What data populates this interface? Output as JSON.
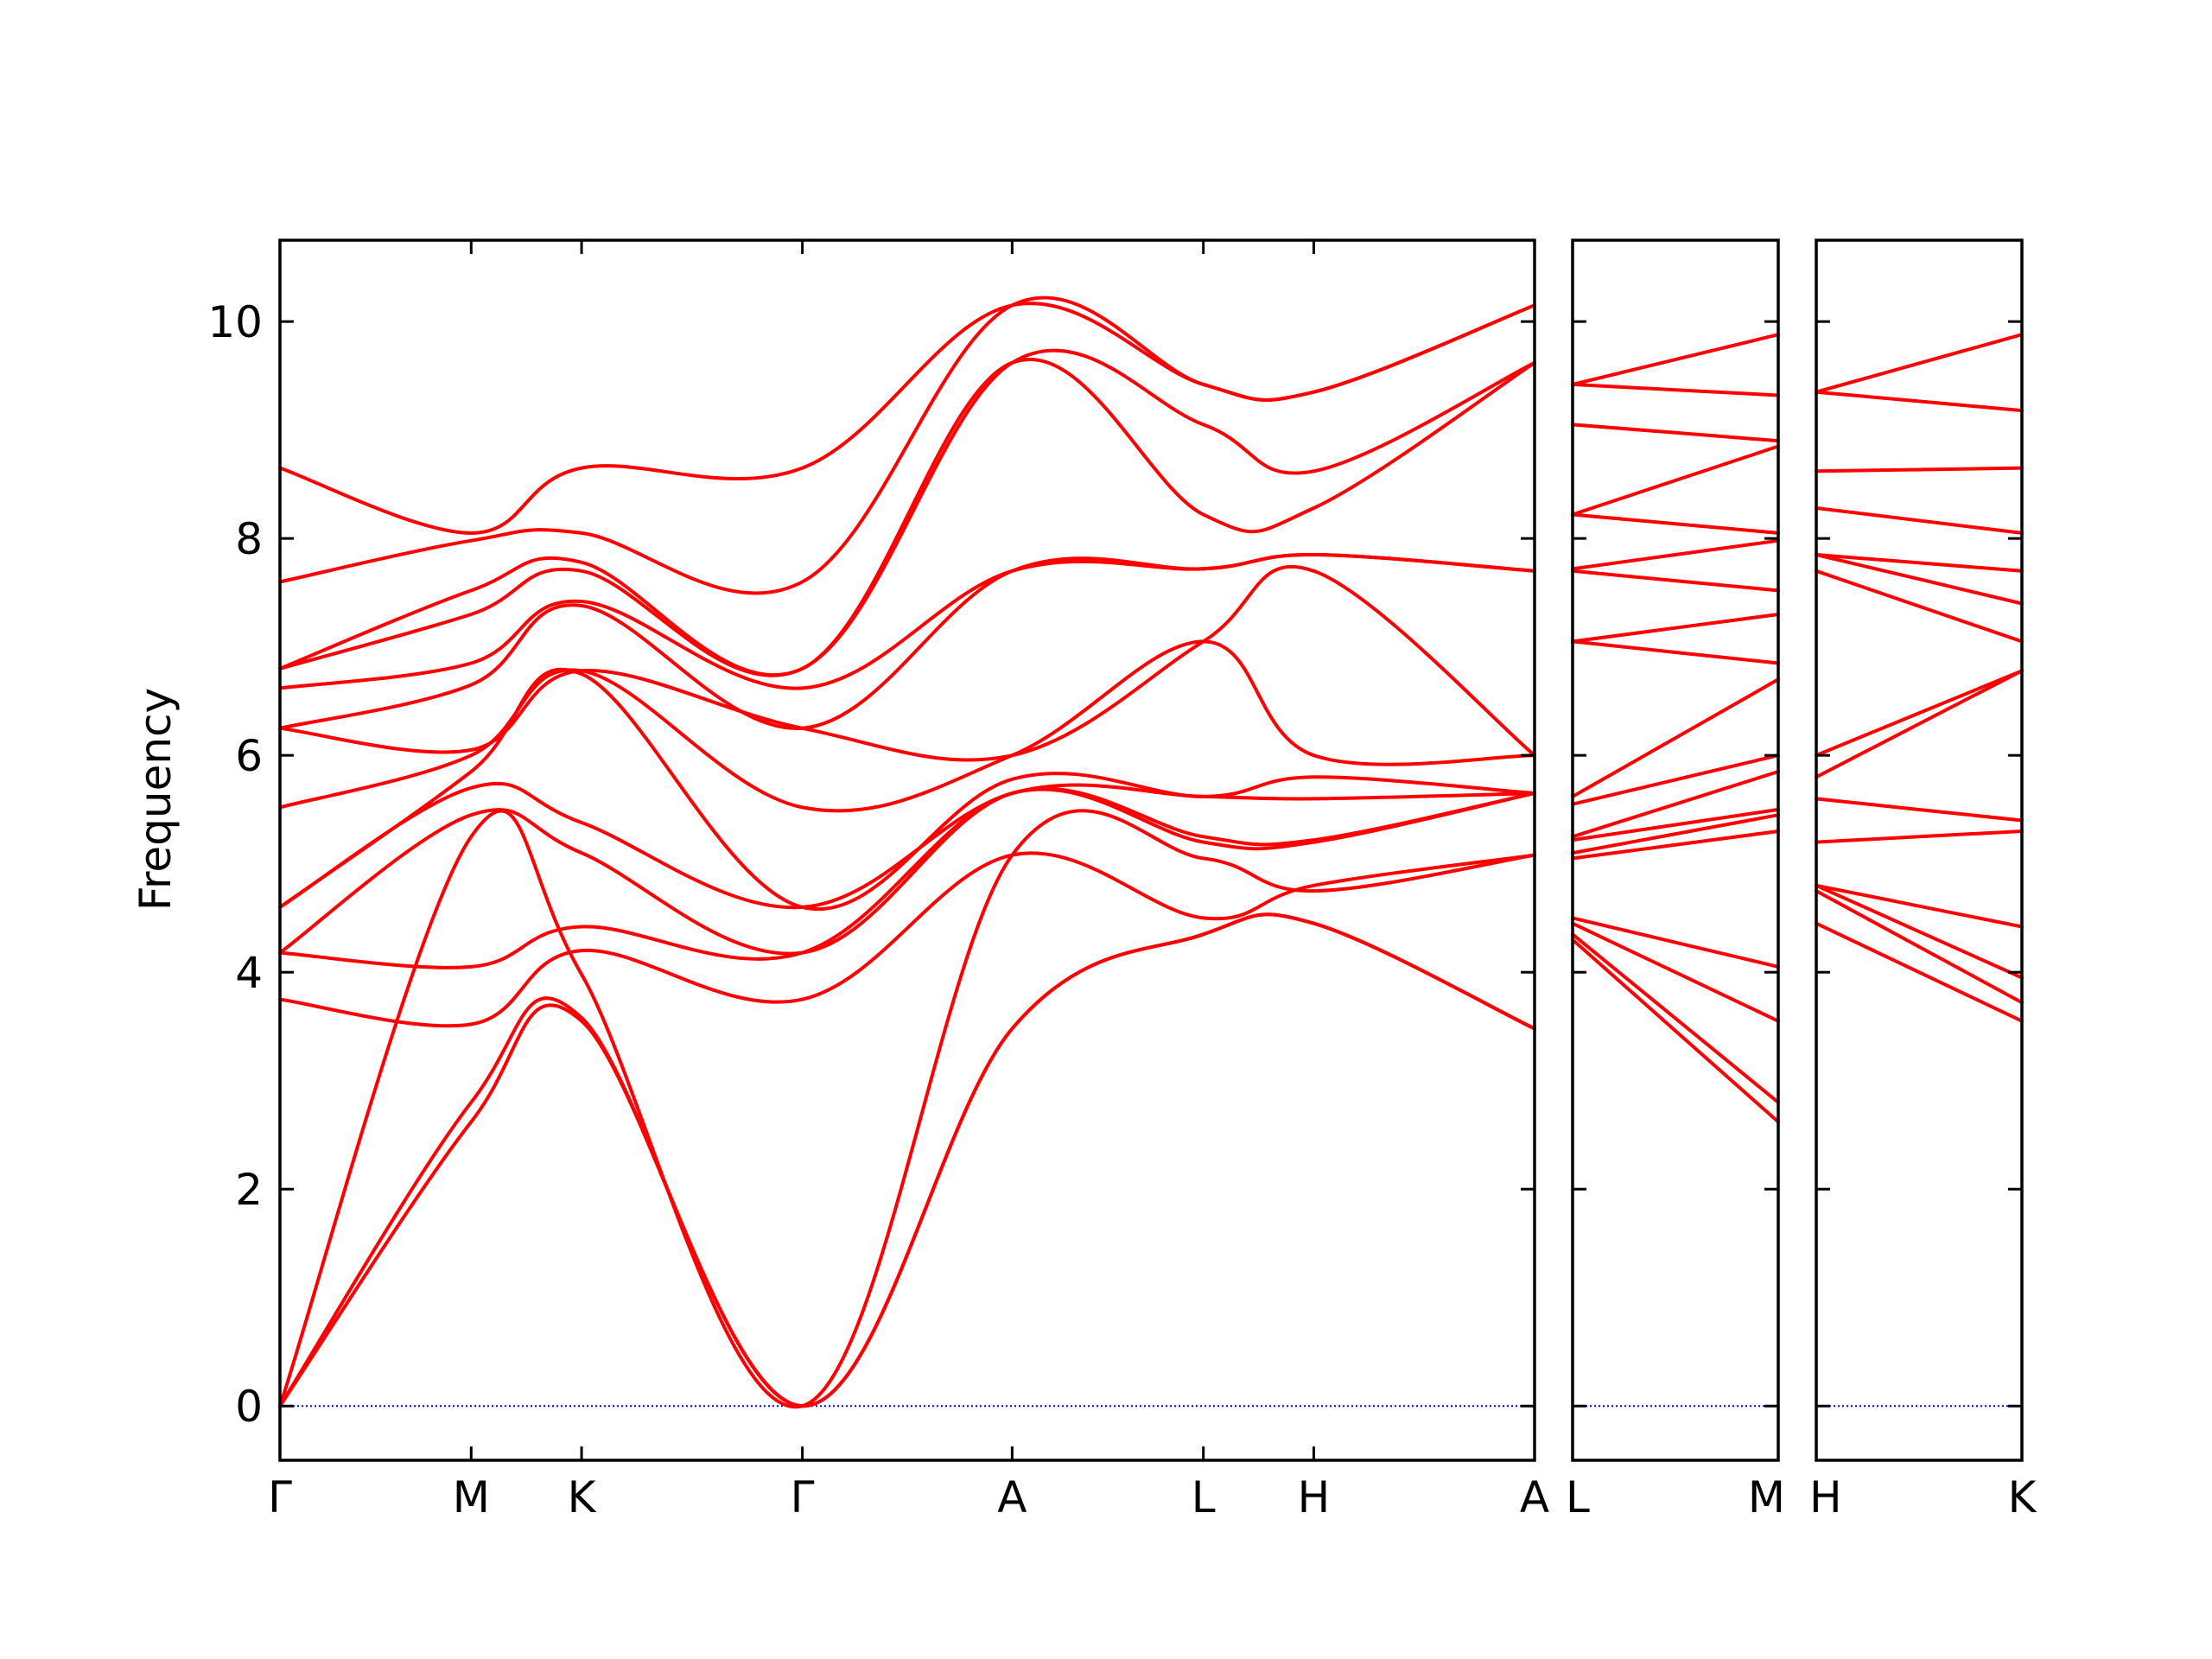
{
  "chart_data": {
    "type": "line",
    "title": "",
    "ylabel": "Frequency",
    "ylim": [
      -0.5,
      10.75
    ],
    "yticks": [
      0,
      2,
      4,
      6,
      8,
      10
    ],
    "ytick_labels": [
      "0",
      "2",
      "4",
      "6",
      "8",
      "10"
    ],
    "grid": false,
    "legend": "none",
    "colors": {
      "bands": "#ff0000",
      "zero_line": "#0000ff",
      "axes": "#000000"
    },
    "panels": [
      {
        "segments": [
          {
            "from": "Γ",
            "to": "M",
            "length": 0.866
          },
          {
            "from": "M",
            "to": "K",
            "length": 0.5
          },
          {
            "from": "K",
            "to": "Γ",
            "length": 1.0
          },
          {
            "from": "Γ",
            "to": "A",
            "length": 0.95
          },
          {
            "from": "A",
            "to": "L",
            "length": 0.866
          },
          {
            "from": "L",
            "to": "H",
            "length": 0.5
          },
          {
            "from": "H",
            "to": "A",
            "length": 1.0
          }
        ],
        "tick_labels": [
          "Γ",
          "M",
          "K",
          "Γ",
          "A",
          "L",
          "H",
          "A"
        ],
        "bands": [
          [
            0.0,
            2.62,
            3.55,
            0.0,
            3.48,
            4.35,
            4.45,
            3.48
          ],
          [
            0.0,
            2.8,
            3.58,
            0.0,
            3.48,
            4.35,
            4.45,
            3.48
          ],
          [
            0.0,
            5.25,
            3.98,
            0.0,
            5.08,
            5.05,
            4.75,
            5.08
          ],
          [
            3.75,
            3.52,
            4.2,
            3.75,
            5.08,
            4.5,
            4.8,
            5.08
          ],
          [
            4.18,
            4.05,
            4.42,
            4.18,
            5.65,
            5.2,
            5.2,
            5.65
          ],
          [
            4.18,
            5.45,
            5.1,
            4.18,
            5.65,
            5.25,
            5.22,
            5.65
          ],
          [
            4.6,
            5.7,
            5.38,
            4.6,
            5.65,
            5.62,
            5.6,
            5.65
          ],
          [
            4.6,
            5.85,
            6.75,
            4.6,
            5.78,
            5.62,
            5.8,
            5.65
          ],
          [
            5.52,
            6.0,
            6.78,
            5.52,
            6.0,
            7.05,
            6.0,
            6.0
          ],
          [
            6.25,
            6.05,
            6.78,
            6.25,
            6.0,
            7.05,
            7.7,
            6.0
          ],
          [
            6.25,
            6.65,
            7.38,
            6.25,
            7.7,
            7.72,
            7.85,
            7.7
          ],
          [
            6.62,
            6.85,
            7.42,
            6.62,
            7.7,
            7.72,
            7.85,
            7.7
          ],
          [
            6.8,
            7.3,
            7.7,
            6.8,
            9.62,
            8.22,
            8.28,
            9.62
          ],
          [
            6.8,
            7.52,
            7.78,
            6.8,
            9.62,
            9.05,
            8.62,
            9.62
          ],
          [
            7.6,
            7.98,
            8.05,
            7.6,
            10.15,
            9.42,
            9.35,
            10.15
          ],
          [
            8.65,
            8.05,
            8.65,
            8.65,
            10.15,
            9.42,
            9.35,
            10.15
          ]
        ]
      },
      {
        "segments": [
          {
            "from": "L",
            "to": "M",
            "length": 0.5
          }
        ],
        "tick_labels": [
          "L",
          "M"
        ],
        "bands": [
          [
            4.3,
            2.62
          ],
          [
            4.35,
            2.8
          ],
          [
            4.45,
            3.55
          ],
          [
            4.5,
            4.05
          ],
          [
            5.05,
            5.3
          ],
          [
            5.1,
            5.45
          ],
          [
            5.22,
            5.5
          ],
          [
            5.25,
            5.85
          ],
          [
            5.55,
            6.0
          ],
          [
            5.62,
            6.7
          ],
          [
            7.05,
            6.85
          ],
          [
            7.05,
            7.3
          ],
          [
            7.7,
            7.52
          ],
          [
            7.72,
            7.98
          ],
          [
            8.22,
            8.05
          ],
          [
            8.22,
            8.85
          ],
          [
            9.05,
            8.9
          ],
          [
            9.42,
            9.32
          ],
          [
            9.42,
            9.88
          ]
        ]
      },
      {
        "segments": [
          {
            "from": "H",
            "to": "K",
            "length": 0.5
          }
        ],
        "tick_labels": [
          "H",
          "K"
        ],
        "bands": [
          [
            4.45,
            3.55
          ],
          [
            4.75,
            3.72
          ],
          [
            4.8,
            3.95
          ],
          [
            4.8,
            4.42
          ],
          [
            5.2,
            5.3
          ],
          [
            5.6,
            5.4
          ],
          [
            5.8,
            6.78
          ],
          [
            6.0,
            6.78
          ],
          [
            7.7,
            7.05
          ],
          [
            7.85,
            7.4
          ],
          [
            7.85,
            7.7
          ],
          [
            8.28,
            8.05
          ],
          [
            8.62,
            8.65
          ],
          [
            9.35,
            9.18
          ],
          [
            9.35,
            9.88
          ]
        ]
      }
    ]
  }
}
